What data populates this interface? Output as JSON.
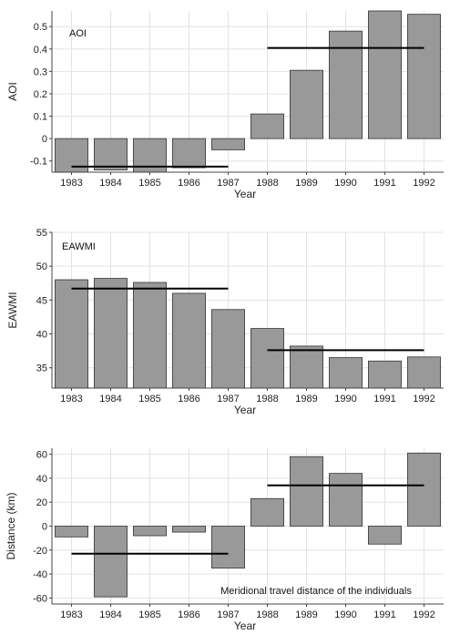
{
  "chart_data": [
    {
      "type": "bar",
      "categories": [
        "1983",
        "1984",
        "1985",
        "1986",
        "1987",
        "1988",
        "1989",
        "1990",
        "1991",
        "1992"
      ],
      "values": [
        -0.15,
        -0.14,
        -0.155,
        -0.13,
        -0.05,
        0.11,
        0.305,
        0.48,
        0.575,
        0.555
      ],
      "annotation": "AOI",
      "xlabel": "Year",
      "ylabel": "AOI",
      "ylim": [
        -0.15,
        0.57
      ],
      "yticks": [
        "-0.1",
        "0",
        "0.1",
        "0.2",
        "0.3",
        "0.4",
        "0.5"
      ],
      "reference_lines": [
        {
          "from": "1983",
          "to": "1987",
          "value": -0.125
        },
        {
          "from": "1988",
          "to": "1992",
          "value": 0.405
        }
      ],
      "bar_color": "#999999",
      "grid": true
    },
    {
      "type": "bar",
      "categories": [
        "1983",
        "1984",
        "1985",
        "1986",
        "1987",
        "1988",
        "1989",
        "1990",
        "1991",
        "1992"
      ],
      "values": [
        48.0,
        48.2,
        47.6,
        46.0,
        43.6,
        40.8,
        38.2,
        36.5,
        36.0,
        36.6
      ],
      "annotation": "EAWMI",
      "xlabel": "Year",
      "ylabel": "EAWMI",
      "ylim": [
        32.0,
        55.0
      ],
      "yticks": [
        "35",
        "40",
        "45",
        "50",
        "55"
      ],
      "reference_lines": [
        {
          "from": "1983",
          "to": "1987",
          "value": 46.7
        },
        {
          "from": "1988",
          "to": "1992",
          "value": 37.6
        }
      ],
      "bar_color": "#999999",
      "grid": true
    },
    {
      "type": "bar",
      "categories": [
        "1983",
        "1984",
        "1985",
        "1986",
        "1987",
        "1988",
        "1989",
        "1990",
        "1991",
        "1992"
      ],
      "values": [
        -9,
        -59,
        -8,
        -5,
        -35,
        23,
        58,
        44,
        -15,
        61
      ],
      "annotation": "Meridional travel distance of the individuals",
      "xlabel": "Year",
      "ylabel": "Distance (km)",
      "ylim": [
        -65.0,
        65.0
      ],
      "yticks": [
        "-60",
        "-40",
        "-20",
        "0",
        "20",
        "40",
        "60"
      ],
      "reference_lines": [
        {
          "from": "1983",
          "to": "1987",
          "value": -23
        },
        {
          "from": "1988",
          "to": "1992",
          "value": 34
        }
      ],
      "bar_color": "#999999",
      "grid": true
    }
  ]
}
